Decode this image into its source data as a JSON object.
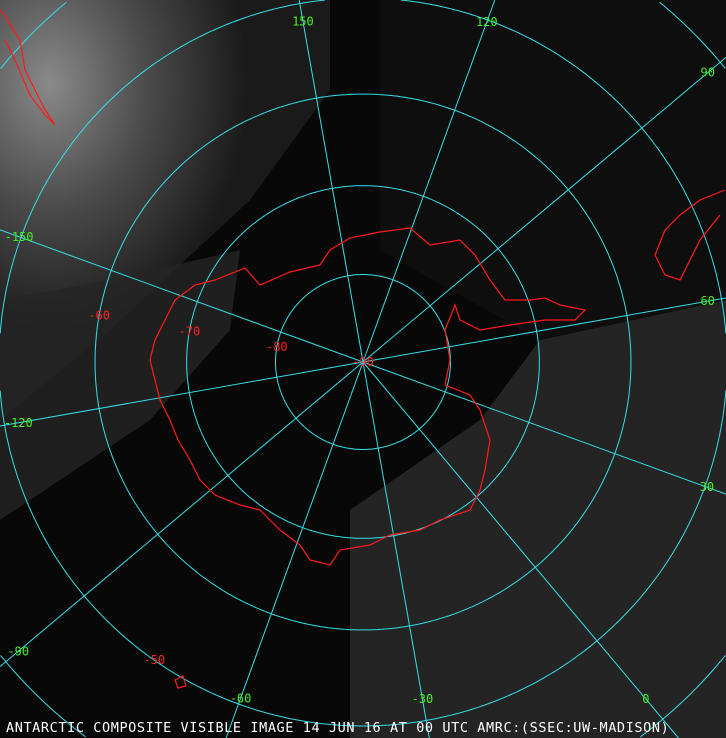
{
  "map": {
    "caption": "ANTARCTIC COMPOSITE VISIBLE IMAGE 14 JUN 16 AT 00 UTC AMRC:(SSEC:UW-MADISON)",
    "projection": "south polar stereographic",
    "latitude_labels": [
      "-90",
      "-80",
      "-70",
      "-60",
      "-50"
    ],
    "longitude_labels": [
      "0",
      "30",
      "60",
      "90",
      "120",
      "150",
      "-150",
      "-120",
      "-90",
      "-60",
      "-30"
    ],
    "colors": {
      "grid": "#33e0e8",
      "coastline": "#ff1a1a",
      "latitude_label": "#ff2020",
      "longitude_label": "#44ee22",
      "caption": "#ffffff"
    }
  }
}
